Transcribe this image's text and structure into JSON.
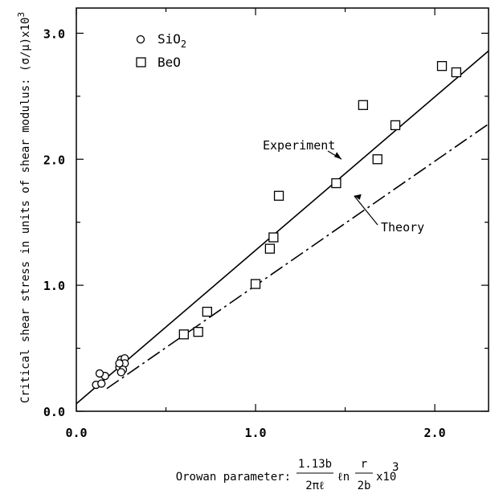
{
  "chart_data": {
    "type": "scatter",
    "xlabel_prefix": "Orowan parameter:",
    "xlabel_formula": {
      "numerator": "1.13b",
      "denominator": "2πℓ",
      "ln": "ℓn",
      "ratio_numerator": "r",
      "ratio_denominator": "2b",
      "scale": "x10",
      "scale_exp": "3"
    },
    "ylabel": "Critical shear stress in units of shear modulus:",
    "ylabel_symbol": "(σ/μ)x10",
    "ylabel_exp": "3",
    "xlim": [
      0.0,
      2.3
    ],
    "ylim": [
      0.0,
      3.2
    ],
    "x_ticks": [
      {
        "value": 0.0,
        "label": "0.0"
      },
      {
        "value": 1.0,
        "label": "1.0"
      },
      {
        "value": 2.0,
        "label": "2.0"
      }
    ],
    "y_ticks": [
      {
        "value": 0.0,
        "label": "0.0"
      },
      {
        "value": 1.0,
        "label": "1.0"
      },
      {
        "value": 2.0,
        "label": "2.0"
      },
      {
        "value": 3.0,
        "label": "3.0"
      }
    ],
    "x_minor_tick_step": 0.5,
    "y_minor_tick_step": 0.5,
    "legend_position": "top-left",
    "series": [
      {
        "name": "SiO",
        "name_sub": "2",
        "marker": "circle",
        "x": [
          0.11,
          0.14,
          0.16,
          0.13,
          0.24,
          0.25,
          0.27,
          0.27,
          0.24,
          0.26,
          0.25
        ],
        "y": [
          0.21,
          0.22,
          0.28,
          0.3,
          0.35,
          0.41,
          0.42,
          0.38,
          0.38,
          0.33,
          0.31
        ]
      },
      {
        "name": "BeO",
        "marker": "square",
        "x": [
          0.6,
          0.68,
          0.73,
          1.0,
          1.08,
          1.1,
          1.13,
          1.45,
          1.6,
          1.68,
          1.78,
          2.04,
          2.12
        ],
        "y": [
          0.61,
          0.63,
          0.79,
          1.01,
          1.29,
          1.38,
          1.71,
          1.81,
          2.43,
          2.0,
          2.27,
          2.74,
          2.69
        ]
      }
    ],
    "lines": [
      {
        "name": "Experiment",
        "style": "solid",
        "x": [
          0.0,
          2.3
        ],
        "y": [
          0.06,
          2.86
        ]
      },
      {
        "name": "Theory",
        "style": "dashdot",
        "x": [
          0.17,
          2.3
        ],
        "y": [
          0.18,
          2.28
        ]
      }
    ],
    "annotations": [
      {
        "text": "Experiment",
        "arrow_to": [
          1.48,
          2.0
        ]
      },
      {
        "text": "Theory",
        "arrow_to": [
          1.55,
          1.71
        ]
      }
    ]
  }
}
